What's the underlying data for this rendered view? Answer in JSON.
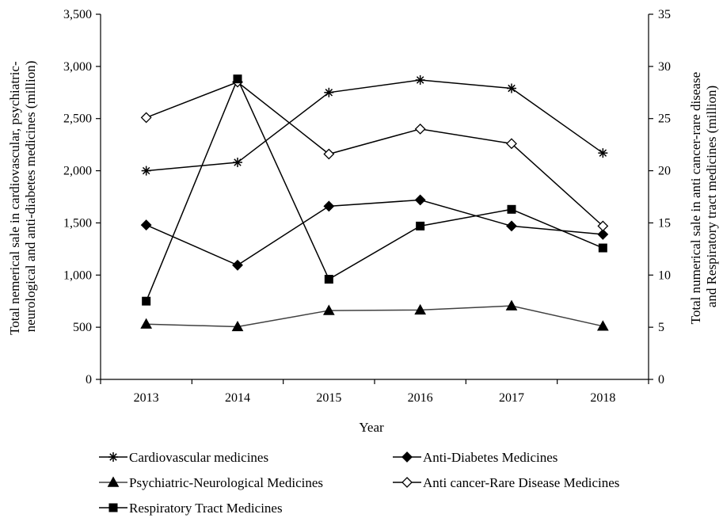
{
  "chart_data": {
    "type": "line",
    "xlabel": "Year",
    "ylabel_left": [
      "Total nemerical sale in cardiovascular, psychiatric-",
      "neurological and anti-diabetes medicines (million)"
    ],
    "ylabel_right": [
      "Total numerical sale in anti cancer-rare disease",
      "and Respiratory tract medicines (million)"
    ],
    "categories": [
      "2013",
      "2014",
      "2015",
      "2016",
      "2017",
      "2018"
    ],
    "y_left": {
      "min": 0,
      "max": 3500,
      "ticks": [
        0,
        500,
        1000,
        1500,
        2000,
        2500,
        3000,
        3500
      ],
      "tick_labels": [
        "0",
        "500",
        "1,000",
        "1,500",
        "2,000",
        "2,500",
        "3,000",
        "3,500"
      ]
    },
    "y_right": {
      "min": 0,
      "max": 35,
      "ticks": [
        0,
        5,
        10,
        15,
        20,
        25,
        30,
        35
      ],
      "tick_labels": [
        "0",
        "5",
        "10",
        "15",
        "20",
        "25",
        "30",
        "35"
      ]
    },
    "grid": false,
    "legend_position": "bottom",
    "series": [
      {
        "name": "Cardiovascular medicines",
        "axis": "left",
        "marker": "asterisk",
        "color": "#000000",
        "values": [
          2000,
          2080,
          2750,
          2870,
          2790,
          2170
        ]
      },
      {
        "name": "Anti-Diabetes Medicines",
        "axis": "left",
        "marker": "diamond-filled",
        "color": "#000000",
        "values": [
          1480,
          1095,
          1660,
          1720,
          1470,
          1390
        ]
      },
      {
        "name": "Psychiatric-Neurological Medicines",
        "axis": "left",
        "marker": "triangle-filled",
        "color": "#404040",
        "values": [
          530,
          505,
          660,
          665,
          705,
          510
        ]
      },
      {
        "name": "Anti cancer-Rare Disease Medicines",
        "axis": "right",
        "marker": "diamond-open",
        "color": "#000000",
        "values": [
          25.1,
          28.5,
          21.6,
          24.0,
          22.6,
          14.7
        ]
      },
      {
        "name": "Respiratory Tract Medicines",
        "axis": "right",
        "marker": "square-filled",
        "color": "#000000",
        "values": [
          7.5,
          28.8,
          9.6,
          14.7,
          16.3,
          12.6
        ]
      }
    ]
  }
}
